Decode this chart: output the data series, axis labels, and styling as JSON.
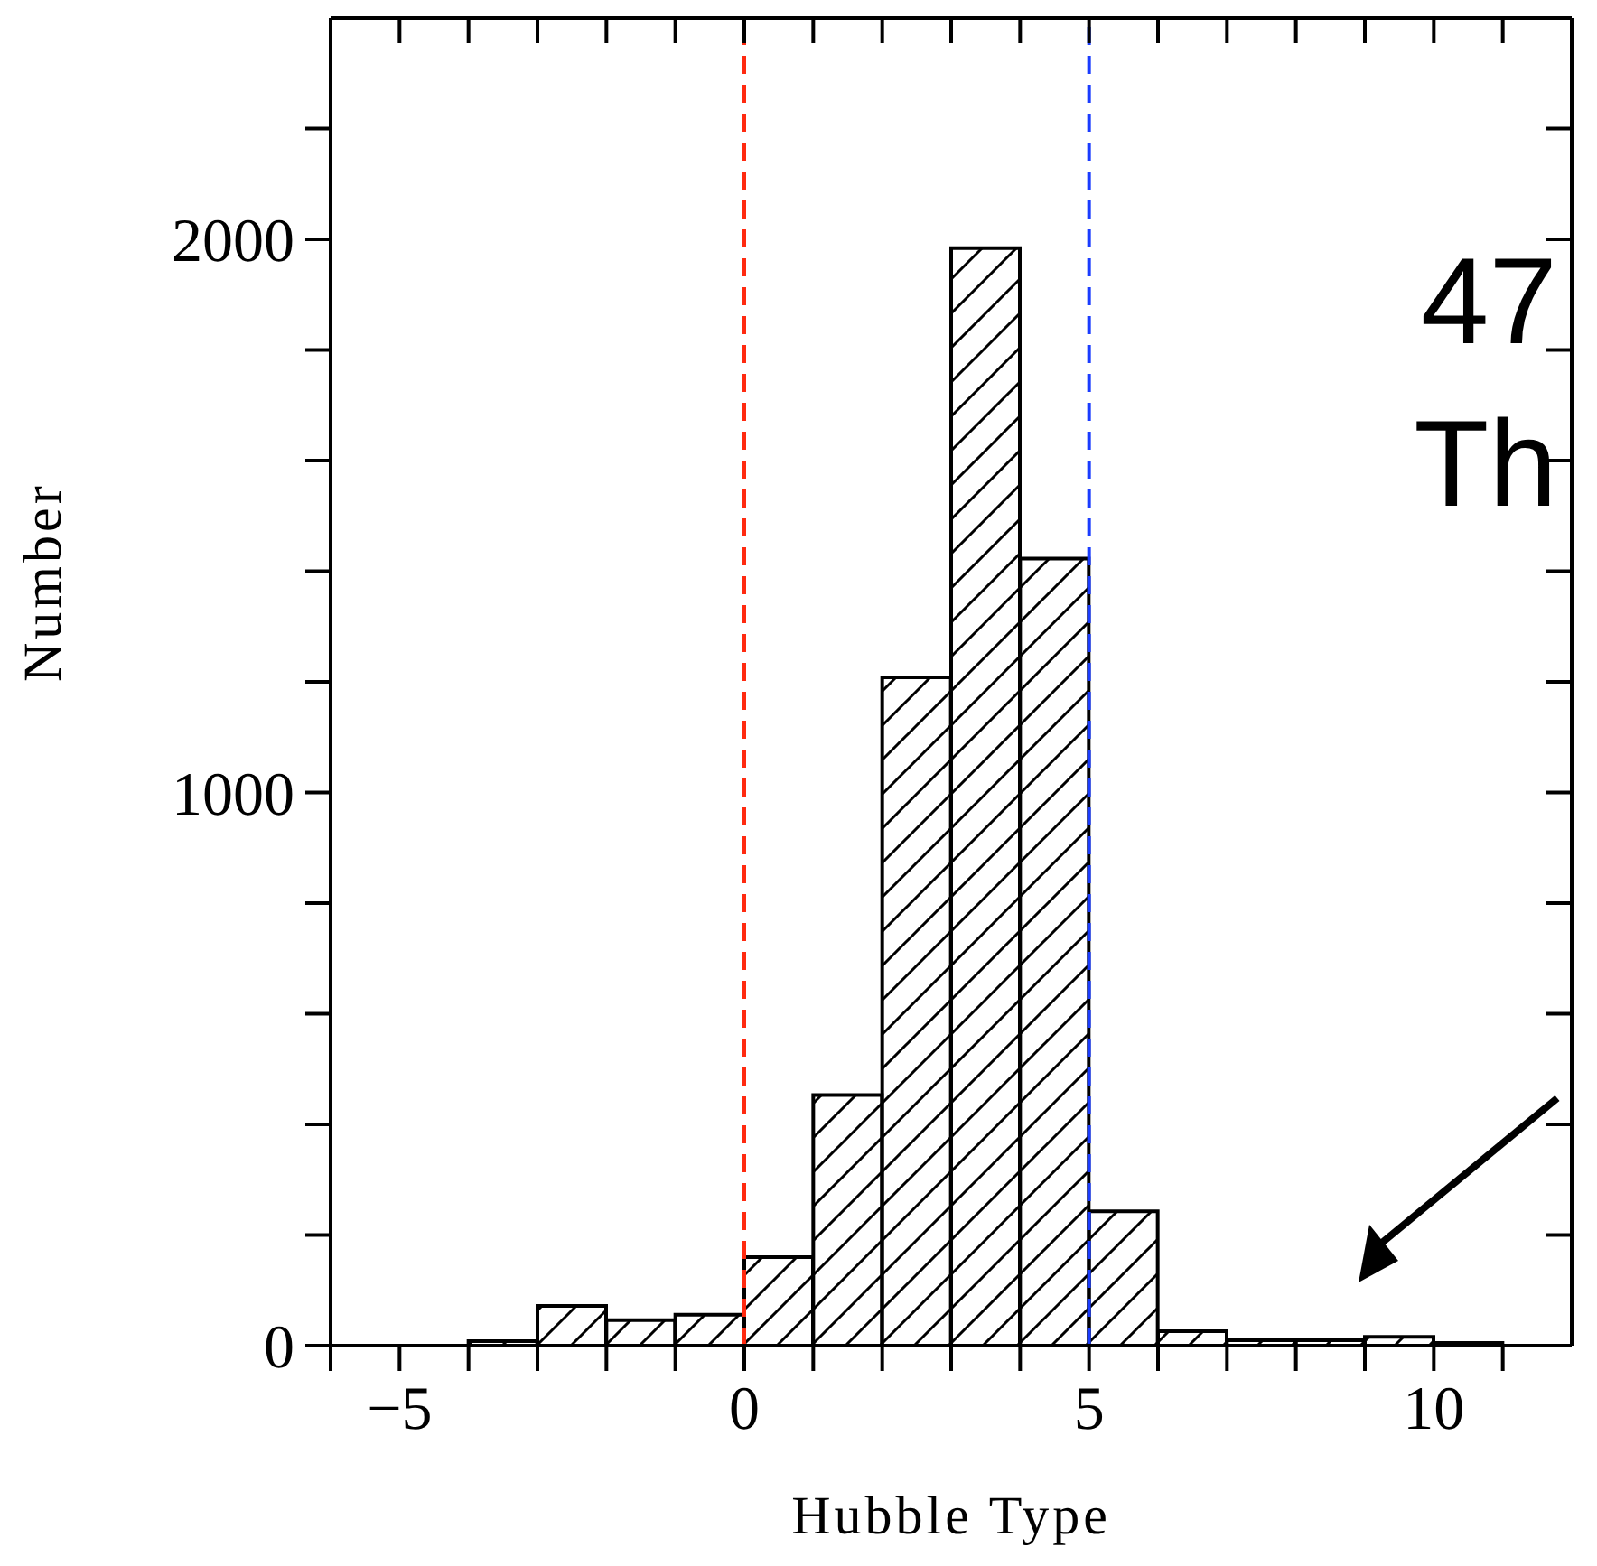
{
  "chart_data": {
    "type": "histogram",
    "xlabel": "Hubble Type",
    "ylabel": "Number",
    "bins": [
      -5,
      -4,
      -3,
      -2,
      -1,
      0,
      1,
      2,
      3,
      4,
      5,
      6,
      7,
      8,
      9,
      10,
      11
    ],
    "series": [
      {
        "color": "#000000",
        "values": [
          null,
          8,
          72,
          46,
          56,
          160,
          453,
          1208,
          1984,
          1423,
          243,
          26,
          10,
          10,
          16,
          5
        ]
      }
    ],
    "xlim": [
      -6,
      12
    ],
    "xticks": [
      {
        "value": -6,
        "label": null
      },
      {
        "value": -5,
        "label": "−5"
      },
      {
        "value": -4,
        "label": null
      },
      {
        "value": -3,
        "label": null
      },
      {
        "value": -2,
        "label": null
      },
      {
        "value": -1,
        "label": null
      },
      0,
      {
        "value": 1,
        "label": null
      },
      {
        "value": 2,
        "label": null
      },
      {
        "value": 3,
        "label": null
      },
      {
        "value": 4,
        "label": null
      },
      5,
      {
        "value": 6,
        "label": null
      },
      {
        "value": 7,
        "label": null
      },
      {
        "value": 8,
        "label": null
      },
      {
        "value": 9,
        "label": null
      },
      10,
      {
        "value": 11,
        "label": null
      }
    ],
    "ylim": [
      0,
      2400
    ],
    "yticks": [
      0,
      {
        "value": 200,
        "label": null
      },
      {
        "value": 400,
        "label": null
      },
      {
        "value": 600,
        "label": null
      },
      {
        "value": 800,
        "label": null
      },
      1000,
      {
        "value": 1200,
        "label": null
      },
      {
        "value": 1400,
        "label": null
      },
      {
        "value": 1600,
        "label": null
      },
      {
        "value": 1800,
        "label": null
      },
      2000,
      {
        "value": 2200,
        "label": null
      }
    ],
    "ref_lines": [
      {
        "axis": "x",
        "value": 0,
        "color": "#ff2a10",
        "line_style": "dashed"
      },
      {
        "axis": "x",
        "value": 5,
        "color": "#1a3cff",
        "line_style": "dashed"
      }
    ],
    "annotations": [
      "47",
      "Th"
    ],
    "grid": false,
    "legend": false
  }
}
